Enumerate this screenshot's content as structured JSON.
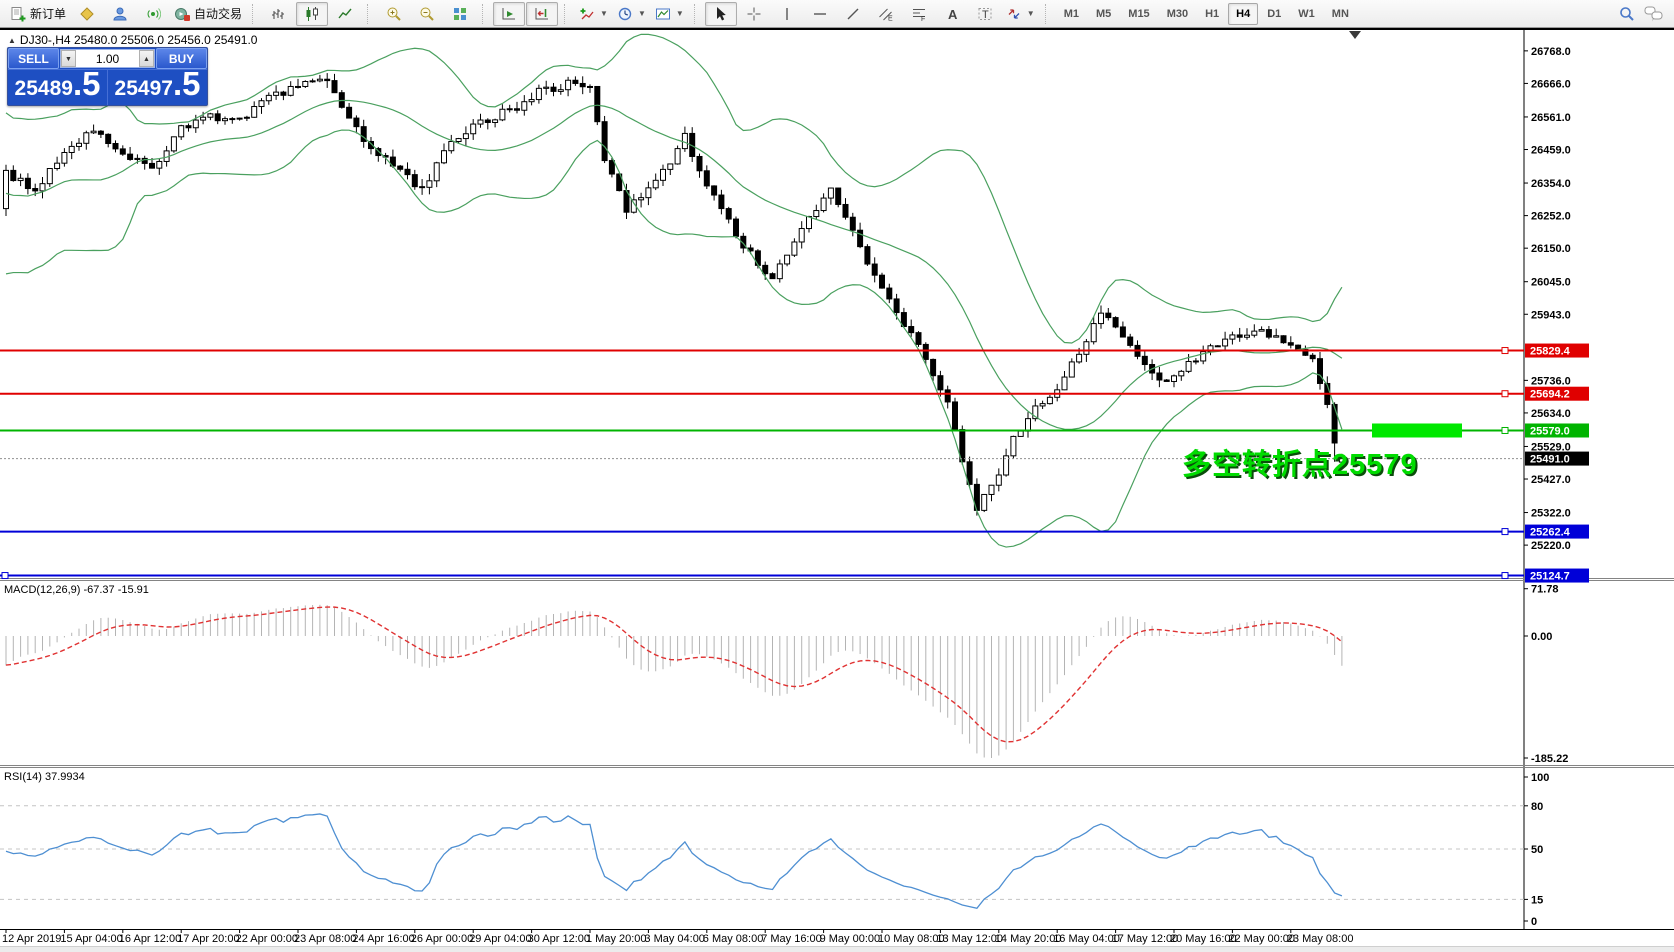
{
  "toolbar": {
    "new_order": "新订单",
    "autotrading": "自动交易",
    "timeframes": [
      "M1",
      "M5",
      "M15",
      "M30",
      "H1",
      "H4",
      "D1",
      "W1",
      "MN"
    ],
    "active_timeframe": "H4",
    "tool_letters": {
      "text": "A",
      "text_label": "T",
      "channel": "E",
      "fibonacci": "F"
    }
  },
  "symbol_bar": {
    "text": "DJ30-,H4  25480.0 25506.0 25456.0 25491.0"
  },
  "trade_panel": {
    "sell_label": "SELL",
    "buy_label": "BUY",
    "volume": "1.00",
    "sell_price_int": "25489",
    "sell_price_frac": ".5",
    "buy_price_int": "25497",
    "buy_price_frac": ".5"
  },
  "annotation": {
    "text": "多空转折点25579",
    "color": "#00dc00"
  },
  "price_axis": {
    "ticks": [
      {
        "label": "26768.0",
        "value": 26768
      },
      {
        "label": "26666.0",
        "value": 26666
      },
      {
        "label": "26561.0",
        "value": 26561
      },
      {
        "label": "26459.0",
        "value": 26459
      },
      {
        "label": "26354.0",
        "value": 26354
      },
      {
        "label": "26252.0",
        "value": 26252
      },
      {
        "label": "26150.0",
        "value": 26150
      },
      {
        "label": "26045.0",
        "value": 26045
      },
      {
        "label": "25943.0",
        "value": 25943
      },
      {
        "label": "25736.0",
        "value": 25736
      },
      {
        "label": "25634.0",
        "value": 25634
      },
      {
        "label": "25529.0",
        "value": 25529
      },
      {
        "label": "25427.0",
        "value": 25427
      },
      {
        "label": "25322.0",
        "value": 25322
      },
      {
        "label": "25220.0",
        "value": 25220
      }
    ]
  },
  "hlines": [
    {
      "label": "25829.4",
      "value": 25829.4,
      "color": "#e00000"
    },
    {
      "label": "25694.2",
      "value": 25694.2,
      "color": "#e00000"
    },
    {
      "label": "25579.0",
      "value": 25579.0,
      "color": "#00b400"
    },
    {
      "label": "25262.4",
      "value": 25262.4,
      "color": "#0000d8"
    },
    {
      "label": "25124.7",
      "value": 25124.7,
      "color": "#0000d8"
    }
  ],
  "bid_line": {
    "label": "25491.0",
    "value": 25491.0,
    "color": "#909090"
  },
  "highlight_rect": {
    "value": 25579.0,
    "color": "#00e800"
  },
  "time_axis": {
    "labels": [
      "12 Apr 2019",
      "15 Apr 04:00",
      "16 Apr 12:00",
      "17 Apr 20:00",
      "22 Apr 00:00",
      "23 Apr 08:00",
      "24 Apr 16:00",
      "26 Apr 00:00",
      "29 Apr 04:00",
      "30 Apr 12:00",
      "1 May 20:00",
      "3 May 04:00",
      "6 May 08:00",
      "7 May 16:00",
      "9 May 00:00",
      "10 May 08:00",
      "13 May 12:00",
      "14 May 20:00",
      "16 May 04:00",
      "17 May 12:00",
      "20 May 16:00",
      "22 May 00:00",
      "23 May 08:00"
    ]
  },
  "macd_pane": {
    "label": "MACD(12,26,9) -67.37 -15.91",
    "axis": [
      {
        "label": "71.78",
        "value": 71.78
      },
      {
        "label": "0.00",
        "value": 0
      },
      {
        "label": "-185.22",
        "value": -185.22
      }
    ],
    "histogram_color": "#b4b4b4",
    "signal_color": "#e03232"
  },
  "rsi_pane": {
    "label": "RSI(14) 37.9934",
    "axis": [
      {
        "label": "100",
        "value": 100
      },
      {
        "label": "80",
        "value": 80
      },
      {
        "label": "50",
        "value": 50
      },
      {
        "label": "15",
        "value": 15
      },
      {
        "label": "0",
        "value": 0
      }
    ],
    "levels": [
      80,
      50,
      15
    ],
    "line_color": "#4e8fd2"
  },
  "chart_data": {
    "type": "candlestick",
    "symbol": "DJ30-",
    "timeframe": "H4",
    "last_bar": {
      "open": 25480.0,
      "high": 25506.0,
      "low": 25456.0,
      "close": 25491.0
    },
    "bars": 184,
    "view_price_range": [
      25117,
      26802
    ],
    "close_waypoints": [
      [
        0,
        26380
      ],
      [
        4,
        26330
      ],
      [
        8,
        26450
      ],
      [
        12,
        26530
      ],
      [
        16,
        26440
      ],
      [
        20,
        26400
      ],
      [
        24,
        26520
      ],
      [
        28,
        26560
      ],
      [
        32,
        26550
      ],
      [
        36,
        26620
      ],
      [
        40,
        26660
      ],
      [
        44,
        26685
      ],
      [
        47,
        26550
      ],
      [
        50,
        26470
      ],
      [
        54,
        26400
      ],
      [
        57,
        26330
      ],
      [
        61,
        26490
      ],
      [
        65,
        26550
      ],
      [
        69,
        26580
      ],
      [
        73,
        26640
      ],
      [
        77,
        26665
      ],
      [
        80,
        26650
      ],
      [
        82,
        26420
      ],
      [
        85,
        26270
      ],
      [
        88,
        26330
      ],
      [
        91,
        26420
      ],
      [
        93,
        26500
      ],
      [
        96,
        26350
      ],
      [
        99,
        26230
      ],
      [
        102,
        26130
      ],
      [
        105,
        26060
      ],
      [
        108,
        26180
      ],
      [
        111,
        26280
      ],
      [
        113,
        26330
      ],
      [
        116,
        26220
      ],
      [
        119,
        26060
      ],
      [
        122,
        25940
      ],
      [
        125,
        25840
      ],
      [
        127,
        25750
      ],
      [
        129,
        25680
      ],
      [
        131,
        25480
      ],
      [
        133,
        25330
      ],
      [
        135,
        25400
      ],
      [
        138,
        25560
      ],
      [
        141,
        25650
      ],
      [
        144,
        25700
      ],
      [
        147,
        25820
      ],
      [
        150,
        25950
      ],
      [
        153,
        25870
      ],
      [
        156,
        25790
      ],
      [
        159,
        25730
      ],
      [
        162,
        25790
      ],
      [
        165,
        25850
      ],
      [
        168,
        25870
      ],
      [
        171,
        25900
      ],
      [
        174,
        25870
      ],
      [
        177,
        25840
      ],
      [
        179,
        25790
      ],
      [
        181,
        25660
      ],
      [
        182,
        25530
      ],
      [
        183,
        25491
      ]
    ],
    "indicators": {
      "bollinger": {
        "period": 20,
        "deviation": 2,
        "color": "#4aa05f"
      },
      "macd": {
        "fast": 12,
        "slow": 26,
        "signal": 9,
        "values": [
          -67.37,
          -15.91
        ]
      },
      "rsi": {
        "period": 14,
        "value": 37.9934
      }
    }
  }
}
